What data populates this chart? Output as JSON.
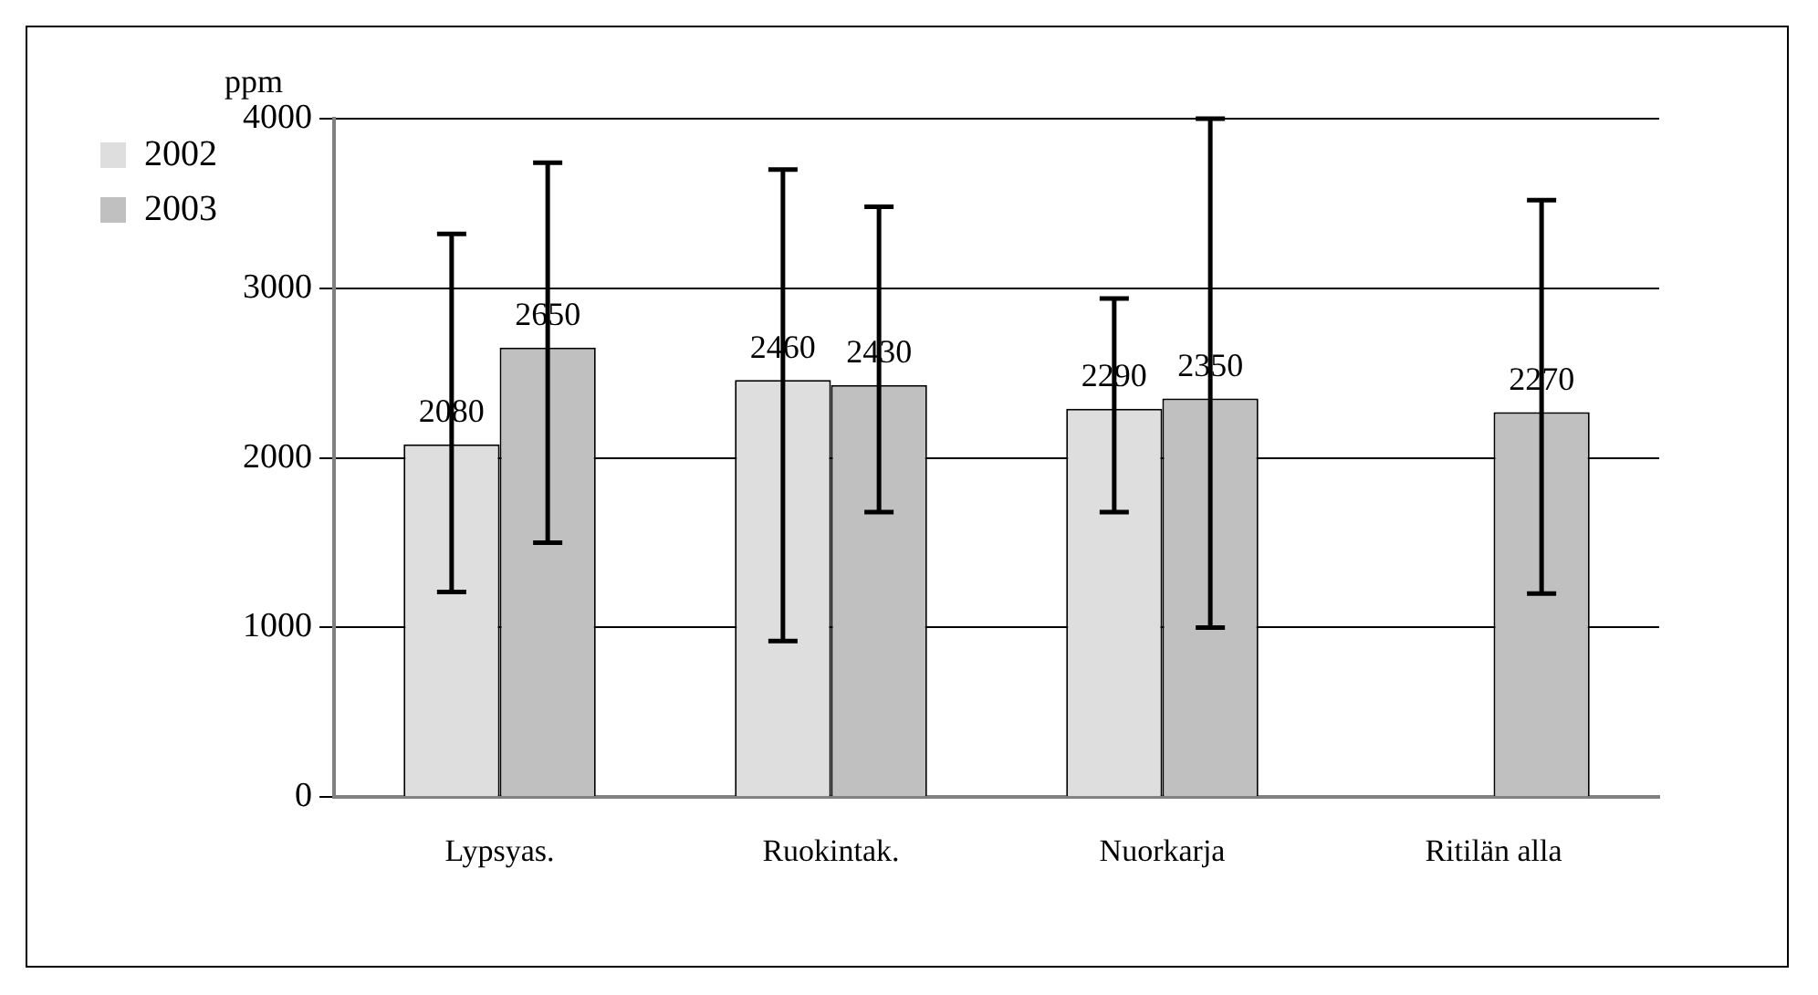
{
  "chart_data": {
    "type": "bar",
    "ylabel": "ppm",
    "categories": [
      "Lypsyas.",
      "Ruokintak.",
      "Nuorkarja",
      "Ritilän alla"
    ],
    "series": [
      {
        "name": "2002",
        "color": "#dedede",
        "values": [
          2080,
          2460,
          2290,
          null
        ],
        "errors": [
          [
            1210,
            3320
          ],
          [
            920,
            3700
          ],
          [
            1680,
            2940
          ],
          null
        ]
      },
      {
        "name": "2003",
        "color": "#c0c0c0",
        "values": [
          2650,
          2430,
          2350,
          2270
        ],
        "errors": [
          [
            1500,
            3740
          ],
          [
            1680,
            3480
          ],
          [
            1000,
            4000
          ],
          [
            1200,
            3520
          ]
        ]
      }
    ],
    "ylim": [
      0,
      4000
    ],
    "yticks": [
      0,
      1000,
      2000,
      3000,
      4000
    ],
    "grid": "y",
    "legend": "top left",
    "data_labels": true
  }
}
